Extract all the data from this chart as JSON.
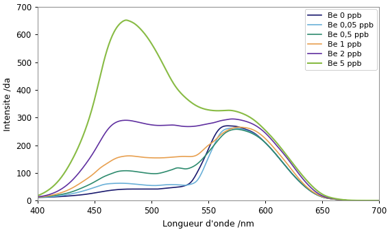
{
  "title": "",
  "xlabel": "Longueur d'onde /nm",
  "ylabel": "Intensite /da",
  "xlim": [
    400,
    700
  ],
  "ylim": [
    0,
    700
  ],
  "xticks": [
    400,
    450,
    500,
    550,
    600,
    650,
    700
  ],
  "yticks": [
    0,
    100,
    200,
    300,
    400,
    500,
    600,
    700
  ],
  "series": [
    {
      "label": "Be 0 ppb",
      "color": "#1a1a6e",
      "linewidth": 1.2,
      "x": [
        400,
        410,
        420,
        430,
        440,
        450,
        460,
        470,
        480,
        490,
        500,
        505,
        510,
        515,
        520,
        525,
        530,
        535,
        540,
        550,
        555,
        560,
        565,
        570,
        575,
        580,
        590,
        600,
        610,
        620,
        630,
        640,
        650,
        660,
        670,
        700
      ],
      "y": [
        12,
        13,
        15,
        18,
        22,
        28,
        35,
        40,
        42,
        42,
        42,
        42,
        44,
        46,
        48,
        50,
        55,
        68,
        100,
        185,
        230,
        260,
        270,
        270,
        268,
        262,
        245,
        210,
        165,
        115,
        70,
        35,
        14,
        6,
        2,
        0
      ]
    },
    {
      "label": "Be 0,05 ppb",
      "color": "#6ab0d8",
      "linewidth": 1.2,
      "x": [
        400,
        410,
        420,
        430,
        440,
        450,
        455,
        460,
        465,
        470,
        475,
        480,
        490,
        500,
        505,
        510,
        515,
        520,
        525,
        530,
        535,
        540,
        550,
        555,
        560,
        565,
        570,
        575,
        580,
        590,
        600,
        610,
        620,
        630,
        640,
        650,
        660,
        670,
        700
      ],
      "y": [
        12,
        14,
        18,
        25,
        35,
        48,
        55,
        60,
        62,
        63,
        63,
        62,
        58,
        55,
        55,
        57,
        58,
        58,
        57,
        56,
        60,
        72,
        155,
        200,
        240,
        258,
        262,
        262,
        258,
        242,
        210,
        165,
        115,
        70,
        35,
        14,
        6,
        2,
        0
      ]
    },
    {
      "label": "Be 0,5 ppb",
      "color": "#2e8b6e",
      "linewidth": 1.2,
      "x": [
        400,
        410,
        420,
        430,
        440,
        450,
        455,
        460,
        465,
        470,
        475,
        480,
        490,
        500,
        505,
        510,
        515,
        520,
        522,
        525,
        530,
        535,
        540,
        550,
        555,
        560,
        565,
        570,
        575,
        580,
        590,
        600,
        610,
        620,
        630,
        640,
        650,
        660,
        670,
        700
      ],
      "y": [
        12,
        16,
        22,
        32,
        48,
        68,
        80,
        90,
        98,
        105,
        108,
        108,
        103,
        98,
        98,
        102,
        108,
        115,
        118,
        118,
        115,
        120,
        132,
        175,
        200,
        225,
        245,
        255,
        258,
        255,
        240,
        210,
        165,
        115,
        70,
        35,
        14,
        6,
        2,
        0
      ]
    },
    {
      "label": "Be 1 ppb",
      "color": "#e8a050",
      "linewidth": 1.2,
      "x": [
        400,
        410,
        420,
        430,
        440,
        450,
        455,
        460,
        465,
        470,
        475,
        480,
        490,
        500,
        510,
        520,
        530,
        540,
        550,
        555,
        560,
        565,
        570,
        575,
        580,
        590,
        600,
        610,
        620,
        630,
        640,
        650,
        660,
        670,
        700
      ],
      "y": [
        13,
        18,
        28,
        45,
        70,
        100,
        118,
        132,
        145,
        155,
        160,
        162,
        158,
        155,
        155,
        158,
        160,
        165,
        200,
        215,
        235,
        250,
        260,
        265,
        265,
        255,
        225,
        180,
        130,
        78,
        38,
        15,
        6,
        2,
        0
      ]
    },
    {
      "label": "Be 2 ppb",
      "color": "#6030a0",
      "linewidth": 1.2,
      "x": [
        400,
        410,
        420,
        430,
        440,
        450,
        455,
        460,
        465,
        470,
        475,
        480,
        490,
        500,
        505,
        510,
        515,
        520,
        525,
        530,
        535,
        540,
        550,
        555,
        560,
        565,
        570,
        575,
        580,
        590,
        600,
        610,
        620,
        630,
        640,
        650,
        660,
        670,
        700
      ],
      "y": [
        14,
        22,
        40,
        72,
        120,
        180,
        215,
        248,
        272,
        285,
        290,
        290,
        282,
        274,
        272,
        272,
        273,
        273,
        270,
        268,
        268,
        270,
        278,
        282,
        288,
        292,
        295,
        294,
        290,
        275,
        245,
        200,
        150,
        95,
        48,
        18,
        7,
        2,
        0
      ]
    },
    {
      "label": "Be 5 ppb",
      "color": "#88bb44",
      "linewidth": 1.5,
      "x": [
        400,
        410,
        420,
        430,
        440,
        450,
        455,
        460,
        465,
        470,
        475,
        478,
        480,
        485,
        490,
        495,
        500,
        510,
        520,
        530,
        540,
        550,
        560,
        565,
        570,
        575,
        580,
        590,
        600,
        610,
        620,
        630,
        640,
        650,
        660,
        670,
        700
      ],
      "y": [
        18,
        40,
        80,
        145,
        235,
        365,
        450,
        530,
        590,
        628,
        648,
        652,
        650,
        640,
        622,
        598,
        568,
        495,
        420,
        372,
        342,
        328,
        325,
        326,
        326,
        322,
        315,
        292,
        255,
        210,
        158,
        105,
        58,
        24,
        9,
        3,
        0
      ]
    }
  ],
  "legend_loc": "upper right",
  "background_color": "#ffffff",
  "grid": false,
  "figsize": [
    5.69,
    3.38
  ],
  "dpi": 100
}
